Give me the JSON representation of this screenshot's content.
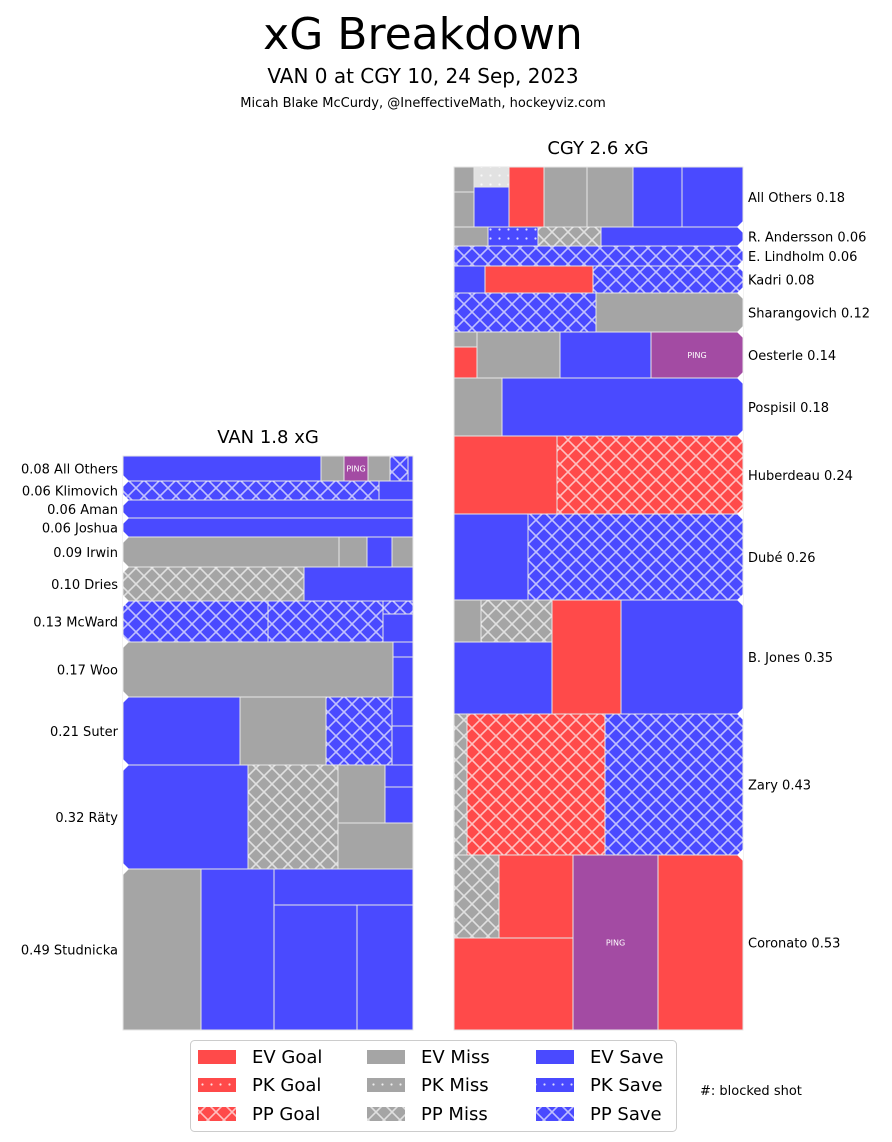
{
  "title": "xG Breakdown",
  "subtitle": "VAN 0 at CGY 10, 24 Sep, 2023",
  "credit": "Micah Blake McCurdy, @IneffectiveMath, hockeyviz.com",
  "blocked_note": "#: blocked shot",
  "colors": {
    "goal": "#ff4a4a",
    "miss": "#a5a5a5",
    "save": "#4a4aff",
    "ping": "#a34ba3",
    "pk_miss_light": "#e2e2e2"
  },
  "chart_data": [
    {
      "type": "treemap",
      "title": "VAN 1.8 xG",
      "label_side": "left",
      "players": [
        {
          "label": "0.08 All Others",
          "xg": 0.08,
          "shots": [
            "EV Save",
            "EV Miss",
            "PING",
            "EV Miss",
            "PP Save",
            "EV Save"
          ]
        },
        {
          "label": "0.06 Klimovich",
          "xg": 0.06,
          "shots": [
            "PP Save",
            "EV Save"
          ]
        },
        {
          "label": "0.06 Aman",
          "xg": 0.06,
          "shots": [
            "EV Save"
          ]
        },
        {
          "label": "0.06 Joshua",
          "xg": 0.06,
          "shots": [
            "EV Save"
          ]
        },
        {
          "label": "0.09 Irwin",
          "xg": 0.09,
          "shots": [
            "EV Miss",
            "EV Miss",
            "EV Save",
            "EV Miss"
          ]
        },
        {
          "label": "0.10 Dries",
          "xg": 0.1,
          "shots": [
            "PP Miss",
            "EV Save"
          ]
        },
        {
          "label": "0.13 McWard",
          "xg": 0.13,
          "shots": [
            "PP Save",
            "PP Save",
            "PP Save",
            "EV Save"
          ]
        },
        {
          "label": "0.17 Woo",
          "xg": 0.17,
          "shots": [
            "EV Miss",
            "EV Save",
            "EV Save"
          ]
        },
        {
          "label": "0.21 Suter",
          "xg": 0.21,
          "shots": [
            "EV Save",
            "EV Miss",
            "PP Save",
            "EV Save",
            "EV Save"
          ]
        },
        {
          "label": "0.32 Räty",
          "xg": 0.32,
          "shots": [
            "EV Save",
            "PP Miss",
            "EV Miss",
            "EV Save",
            "EV Save",
            "EV Miss"
          ]
        },
        {
          "label": "0.49 Studnicka",
          "xg": 0.49,
          "shots": [
            "EV Miss",
            "EV Save",
            "EV Save",
            "EV Save",
            "EV Save"
          ]
        }
      ]
    },
    {
      "type": "treemap",
      "title": "CGY 2.6 xG",
      "label_side": "right",
      "players": [
        {
          "label": "All Others 0.18",
          "xg": 0.18,
          "shots": [
            "EV Miss",
            "EV Miss",
            "PK Miss",
            "EV Save",
            "EV Goal",
            "EV Miss",
            "EV Miss",
            "EV Save",
            "EV Save"
          ]
        },
        {
          "label": "R. Andersson 0.06",
          "xg": 0.06,
          "shots": [
            "EV Miss",
            "PK Save",
            "PP Miss",
            "EV Save"
          ]
        },
        {
          "label": "E. Lindholm 0.06",
          "xg": 0.06,
          "shots": [
            "PP Save"
          ]
        },
        {
          "label": "Kadri 0.08",
          "xg": 0.08,
          "shots": [
            "EV Save",
            "EV Goal",
            "PP Save"
          ]
        },
        {
          "label": "Sharangovich 0.12",
          "xg": 0.12,
          "shots": [
            "PP Save",
            "EV Miss"
          ]
        },
        {
          "label": "Oesterle 0.14",
          "xg": 0.14,
          "shots": [
            "EV Miss",
            "EV Goal",
            "EV Miss",
            "EV Save",
            "PING"
          ]
        },
        {
          "label": "Pospisil 0.18",
          "xg": 0.18,
          "shots": [
            "EV Miss",
            "EV Save"
          ]
        },
        {
          "label": "Huberdeau 0.24",
          "xg": 0.24,
          "shots": [
            "EV Goal",
            "PP Goal"
          ]
        },
        {
          "label": "Dubé 0.26",
          "xg": 0.26,
          "shots": [
            "EV Save",
            "PP Save"
          ]
        },
        {
          "label": "B. Jones 0.35",
          "xg": 0.35,
          "shots": [
            "EV Miss",
            "PP Miss",
            "EV Save",
            "EV Goal",
            "EV Save"
          ]
        },
        {
          "label": "Zary 0.43",
          "xg": 0.43,
          "shots": [
            "PP Miss",
            "PP Goal",
            "PP Save"
          ]
        },
        {
          "label": "Coronato 0.53",
          "xg": 0.53,
          "shots": [
            "PP Miss",
            "EV Goal",
            "EV Goal",
            "PING",
            "EV Goal"
          ]
        }
      ]
    }
  ],
  "legend": {
    "position": "bottom",
    "items": [
      "EV Goal",
      "PK Goal",
      "PP Goal",
      "EV Miss",
      "PK Miss",
      "PP Miss",
      "EV Save",
      "PK Save",
      "PP Save"
    ]
  },
  "ping_label": "PING"
}
